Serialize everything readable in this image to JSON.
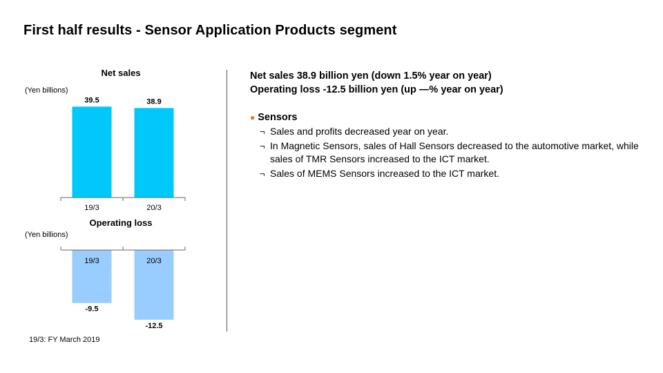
{
  "slide": {
    "title": "First half results - Sensor Application Products segment",
    "footnote": "19/3: FY March 2019"
  },
  "summary": {
    "line1": "Net sales 38.9 billion yen (down 1.5% year on year)",
    "line2": "Operating loss -12.5 billion yen (up —% year on year)",
    "section_title": "Sensors",
    "points": [
      "Sales and profits decreased year on year.",
      "In Magnetic Sensors, sales of Hall Sensors decreased to the automotive market, while sales of TMR Sensors increased to the ICT market.",
      "Sales of MEMS Sensors increased to the ICT market."
    ],
    "point_marker": "¬",
    "section_marker": "●"
  },
  "colors": {
    "net_sales_bar": "#00c8f8",
    "operating_bar": "#99ccff",
    "bullet": "#e87722"
  },
  "chart_data": [
    {
      "type": "bar",
      "title": "Net sales",
      "unit_label": "(Yen billions)",
      "categories": [
        "19/3",
        "20/3"
      ],
      "values": [
        39.5,
        38.9
      ],
      "value_labels": [
        "39.5",
        "38.9"
      ],
      "ylim": [
        0,
        45
      ]
    },
    {
      "type": "bar",
      "title": "Operating loss",
      "unit_label": "(Yen billions)",
      "categories": [
        "19/3",
        "20/3"
      ],
      "values": [
        -9.5,
        -12.5
      ],
      "value_labels": [
        "-9.5",
        "-12.5"
      ],
      "ylim": [
        -14,
        0
      ]
    }
  ]
}
